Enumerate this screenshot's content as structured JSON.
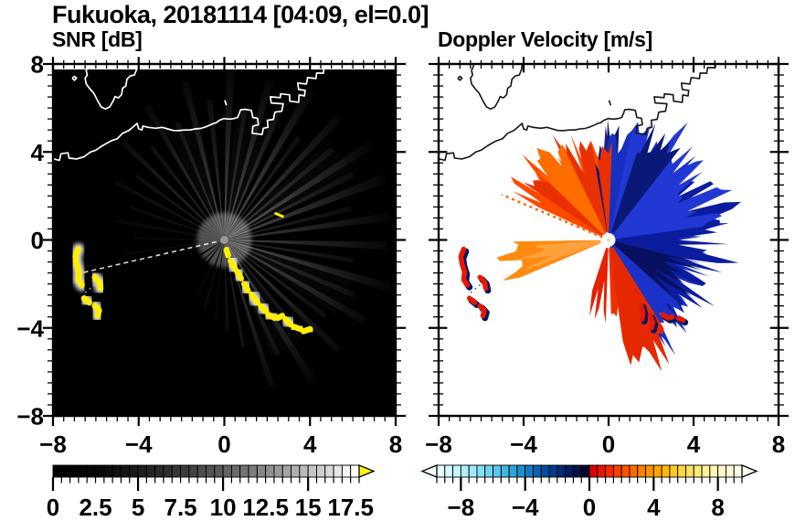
{
  "title": "Fukuoka, 20181114 [04:09, el=0.0]",
  "panels": [
    {
      "key": "snr",
      "title": "SNR [dB]"
    },
    {
      "key": "vel",
      "title": "Doppler Velocity [m/s]"
    }
  ],
  "axes": {
    "xlim": [
      -8,
      8
    ],
    "ylim": [
      -8,
      8
    ],
    "major_tick_values": [
      -8,
      -4,
      0,
      4,
      8
    ],
    "minor_step": 0.5,
    "xtick_labels": [
      "−8",
      "−4",
      "0",
      "4",
      "8"
    ],
    "ytick_labels": [
      "8",
      "4",
      "0",
      "−4",
      "−8"
    ]
  },
  "colors": {
    "snr_bg": "#000000",
    "vel_bg": "#ffffff",
    "coast_snr": "#ffffff",
    "coast_vel": "#141414",
    "high_snr_yellow": "#ffee00",
    "frame": "#000000",
    "doppler_red": "#e81800",
    "doppler_navy": "#0a1464"
  },
  "colorbars": [
    {
      "key": "snr",
      "min": 0,
      "max": 18,
      "labels": [
        "0",
        "2.5",
        "5",
        "7.5",
        "10",
        "12.5",
        "15",
        "17.5"
      ],
      "label_values": [
        0,
        2.5,
        5,
        7.5,
        10,
        12.5,
        15,
        17.5
      ],
      "major_tick_values": [
        0,
        5,
        10,
        15
      ],
      "over_arrow": "#ffff00",
      "under_arrow": null,
      "segments": [
        "#000000",
        "#010101",
        "#020202",
        "#040404",
        "#060606",
        "#090909",
        "#0d0d0d",
        "#111111",
        "#151515",
        "#191919",
        "#1e1e1e",
        "#242424",
        "#292929",
        "#2f2f2f",
        "#363636",
        "#3c3c3c",
        "#434343",
        "#4b4b4b",
        "#525252",
        "#5a5a5a",
        "#636363",
        "#6b6b6b",
        "#747474",
        "#7d7d7d",
        "#868686",
        "#909090",
        "#9a9a9a",
        "#a4a4a4",
        "#afafaf",
        "#b9b9b9",
        "#c4c4c4",
        "#cfcfcf",
        "#dbdbdb",
        "#e7e7e7",
        "#f3f3f3",
        "#ffffff"
      ]
    },
    {
      "key": "vel",
      "min": -9.5,
      "max": 9.5,
      "labels": [
        "−8",
        "−4",
        "0",
        "4",
        "8"
      ],
      "label_values": [
        -8,
        -4,
        0,
        4,
        8
      ],
      "major_tick_values": [
        -8,
        -4,
        0,
        4,
        8
      ],
      "over_arrow": "#fffcf0",
      "under_arrow": "#f0ffff",
      "segments": [
        "#e6ffff",
        "#d4fbfe",
        "#c2f6fc",
        "#b0f0fa",
        "#9ce9f8",
        "#86e0f5",
        "#70d5f0",
        "#5ac7ea",
        "#44b6e3",
        "#30a3da",
        "#1f8ed0",
        "#1278c2",
        "#0961b1",
        "#044c9e",
        "#023a8a",
        "#012a74",
        "#011c5e",
        "#001146",
        "#000830",
        "#dc0000",
        "#e91500",
        "#f42a00",
        "#fb3f00",
        "#ff5500",
        "#ff6a00",
        "#ff7f00",
        "#ff9300",
        "#ffa600",
        "#ffb80c",
        "#ffc824",
        "#ffd640",
        "#ffe25e",
        "#ffeb7c",
        "#fff198",
        "#fff6b2",
        "#fff9c8",
        "#fffcda",
        "#fffde8"
      ]
    }
  ],
  "chart_data": [
    {
      "type": "heatmap",
      "title": "SNR [dB]",
      "xlim": [
        -8,
        8
      ],
      "ylim": [
        -8,
        8
      ],
      "xticks": [
        -8,
        -4,
        0,
        4,
        8
      ],
      "yticks": [
        -8,
        -4,
        0,
        4,
        8
      ],
      "value_range": [
        0,
        18
      ],
      "units": "dB",
      "colormap": "black-to-white grayscale, yellow = above 18 dB",
      "radar_center": [
        0,
        0
      ],
      "features": "Bright radial SNR beams from radar at (0,0) toward N/NE/E/SE; dark shadow sectors toward SW; strong (yellow) echo chain from (0.3,-1.0) to (4.0,-4.1); yellow echo arcs near (-6.8,-0.5)..(-5.9,-3.4); white coastline with harbor structures along y=4..8"
    },
    {
      "type": "heatmap",
      "title": "Doppler Velocity [m/s]",
      "xlim": [
        -8,
        8
      ],
      "ylim": [
        -8,
        8
      ],
      "xticks": [
        -8,
        -4,
        0,
        4,
        8
      ],
      "yticks": [
        -8,
        -4,
        0,
        4,
        8
      ],
      "value_range": [
        -9.5,
        9.5
      ],
      "units": "m/s",
      "colormap": "diverging cyan-blue-navy (negative) / red-orange-cream (positive)",
      "radar_center": [
        0,
        0
      ],
      "features": "Negative (blue/navy) velocity fan east-northeast of radar; positive (red/orange) fan northwest; bright orange wedge due west; red streaks south; detached red/navy echoes near (-6.8,-1.2), (-5.9,-2) and along (1.5,-3)..(3.5,-3.7); black coastline"
    }
  ],
  "geometry": {
    "coastline": [
      [
        [
          -8.05,
          3.7
        ],
        [
          -7.7,
          3.62
        ],
        [
          -7.63,
          3.92
        ],
        [
          -7.3,
          3.96
        ],
        [
          -7.25,
          3.72
        ],
        [
          -6.9,
          3.68
        ],
        [
          -6.55,
          3.78
        ],
        [
          -6.25,
          4.0
        ],
        [
          -6.0,
          4.08
        ],
        [
          -5.7,
          4.28
        ],
        [
          -5.3,
          4.5
        ],
        [
          -5.0,
          4.6
        ],
        [
          -4.75,
          4.85
        ],
        [
          -4.45,
          4.98
        ],
        [
          -4.07,
          5.3
        ],
        [
          -4.0,
          5.05
        ],
        [
          -3.85,
          5.0
        ],
        [
          -3.8,
          5.18
        ],
        [
          -3.55,
          5.12
        ],
        [
          -3.2,
          5.08
        ],
        [
          -2.9,
          5.12
        ],
        [
          -2.65,
          5.05
        ],
        [
          -2.4,
          4.98
        ],
        [
          -2.15,
          4.97
        ],
        [
          -1.85,
          5.0
        ],
        [
          -1.6,
          5.0
        ],
        [
          -1.35,
          5.05
        ],
        [
          -1.1,
          5.07
        ],
        [
          -0.85,
          5.15
        ],
        [
          -0.66,
          5.23
        ],
        [
          -0.5,
          5.3
        ],
        [
          -0.37,
          5.33
        ],
        [
          -0.23,
          5.44
        ],
        [
          -0.02,
          5.52
        ],
        [
          0.15,
          5.5
        ],
        [
          0.33,
          5.5
        ],
        [
          0.5,
          5.53
        ],
        [
          0.62,
          5.57
        ],
        [
          0.7,
          5.75
        ],
        [
          0.76,
          5.92
        ],
        [
          0.97,
          5.94
        ],
        [
          1.15,
          5.91
        ],
        [
          1.26,
          5.89
        ],
        [
          1.33,
          5.57
        ],
        [
          1.45,
          5.55
        ],
        [
          1.55,
          5.53
        ],
        [
          1.59,
          5.24
        ],
        [
          1.42,
          5.2
        ],
        [
          1.33,
          5.16
        ],
        [
          1.3,
          4.85
        ],
        [
          1.55,
          4.82
        ],
        [
          1.76,
          4.79
        ],
        [
          1.82,
          5.08
        ],
        [
          2.04,
          5.12
        ],
        [
          2.01,
          5.44
        ],
        [
          2.29,
          5.48
        ],
        [
          2.36,
          5.81
        ],
        [
          2.68,
          5.85
        ],
        [
          2.75,
          6.19
        ],
        [
          2.45,
          6.21
        ],
        [
          2.19,
          6.23
        ],
        [
          2.15,
          6.51
        ],
        [
          2.61,
          6.47
        ],
        [
          2.63,
          6.64
        ],
        [
          3.04,
          6.6
        ],
        [
          3.06,
          6.31
        ],
        [
          3.47,
          6.26
        ],
        [
          3.49,
          6.59
        ],
        [
          3.74,
          6.55
        ],
        [
          3.77,
          6.8
        ],
        [
          3.47,
          6.84
        ],
        [
          3.43,
          7.13
        ],
        [
          3.83,
          7.09
        ],
        [
          3.89,
          7.38
        ],
        [
          4.28,
          7.34
        ],
        [
          4.31,
          7.59
        ],
        [
          4.62,
          7.58
        ],
        [
          4.66,
          7.84
        ],
        [
          5.02,
          7.83
        ],
        [
          5.06,
          8.3
        ]
      ],
      [
        [
          -6.34,
          8.3
        ],
        [
          -6.36,
          7.9
        ],
        [
          -6.45,
          7.7
        ],
        [
          -6.4,
          7.5
        ],
        [
          -6.5,
          7.35
        ],
        [
          -6.45,
          7.1
        ],
        [
          -6.3,
          6.9
        ],
        [
          -6.1,
          6.68
        ],
        [
          -5.9,
          6.3
        ],
        [
          -5.75,
          6.05
        ],
        [
          -5.55,
          5.95
        ],
        [
          -5.35,
          6.05
        ],
        [
          -5.2,
          6.3
        ],
        [
          -5.1,
          6.52
        ],
        [
          -4.95,
          6.46
        ],
        [
          -4.8,
          6.6
        ],
        [
          -4.75,
          6.9
        ],
        [
          -4.6,
          7.0
        ],
        [
          -4.55,
          7.3
        ],
        [
          -4.4,
          7.45
        ],
        [
          -4.2,
          7.5
        ],
        [
          -4.1,
          7.75
        ],
        [
          -4.02,
          8.3
        ]
      ],
      [
        [
          -7.1,
          7.35
        ],
        [
          -7.0,
          7.44
        ],
        [
          -6.9,
          7.36
        ],
        [
          -7.0,
          7.26
        ],
        [
          -7.1,
          7.35
        ]
      ],
      [
        [
          0.02,
          6.35
        ],
        [
          0.1,
          6.12
        ]
      ]
    ],
    "beams": [
      [
        8,
        0.92,
        1.4,
        0.34
      ],
      [
        14,
        0.72,
        1.1,
        0.22
      ],
      [
        21,
        0.95,
        1.6,
        0.42
      ],
      [
        27,
        0.8,
        1.2,
        0.26
      ],
      [
        33,
        0.97,
        1.5,
        0.45
      ],
      [
        40,
        0.78,
        1.2,
        0.3
      ],
      [
        47,
        0.92,
        1.4,
        0.4
      ],
      [
        54,
        0.7,
        1.1,
        0.24
      ],
      [
        60,
        0.95,
        1.5,
        0.44
      ],
      [
        67,
        0.8,
        1.2,
        0.3
      ],
      [
        74,
        0.92,
        1.3,
        0.38
      ],
      [
        81,
        0.72,
        1.1,
        0.26
      ],
      [
        88,
        0.95,
        1.4,
        0.4
      ],
      [
        96,
        0.78,
        1.2,
        0.28
      ],
      [
        104,
        0.9,
        1.3,
        0.34
      ],
      [
        112,
        0.7,
        1.1,
        0.24
      ],
      [
        120,
        0.85,
        1.2,
        0.3
      ],
      [
        128,
        0.65,
        1.0,
        0.22
      ],
      [
        136,
        0.78,
        1.1,
        0.26
      ],
      [
        144,
        0.6,
        1.0,
        0.18
      ],
      [
        152,
        0.68,
        1.0,
        0.15
      ],
      [
        161,
        0.55,
        0.9,
        0.12
      ],
      [
        170,
        0.6,
        0.9,
        0.1
      ],
      [
        179,
        0.5,
        0.8,
        0.08
      ],
      [
        188,
        0.55,
        0.8,
        0.07
      ],
      [
        -2,
        0.9,
        1.4,
        0.36
      ],
      [
        -9,
        0.72,
        1.1,
        0.24
      ],
      [
        -16,
        0.95,
        1.5,
        0.42
      ],
      [
        -23,
        0.78,
        1.2,
        0.28
      ],
      [
        -30,
        0.9,
        1.4,
        0.36
      ],
      [
        -37,
        0.7,
        1.1,
        0.24
      ],
      [
        -44,
        0.88,
        1.3,
        0.34
      ],
      [
        -51,
        0.68,
        1.1,
        0.22
      ],
      [
        -58,
        0.92,
        1.4,
        0.36
      ],
      [
        -65,
        0.7,
        1.1,
        0.24
      ],
      [
        -72,
        0.85,
        1.2,
        0.3
      ],
      [
        -80,
        0.6,
        1.0,
        0.2
      ],
      [
        -88,
        0.5,
        1.0,
        0.14
      ],
      [
        -97,
        0.45,
        0.9,
        0.11
      ],
      [
        -106,
        0.4,
        0.9,
        0.09
      ],
      [
        -116,
        0.35,
        0.8,
        0.07
      ],
      [
        35,
        0.8,
        9,
        0.08
      ],
      [
        75,
        0.75,
        10,
        0.07
      ],
      [
        110,
        0.7,
        8,
        0.06
      ],
      [
        -25,
        0.75,
        9,
        0.07
      ],
      [
        -60,
        0.7,
        8,
        0.06
      ]
    ],
    "shadow_wedges": [
      [
        212,
        1.0,
        2.2
      ],
      [
        224,
        0.9,
        1.4
      ],
      [
        233,
        0.95,
        2.0
      ],
      [
        250,
        0.85,
        1.7
      ],
      [
        262,
        0.55,
        1.2
      ]
    ],
    "bright_ray": {
      "angle": 193,
      "len": 0.82
    },
    "snr_chain": [
      [
        [
          0.1,
          -0.45
        ],
        [
          0.18,
          -0.7
        ]
      ],
      [
        [
          0.3,
          -0.95
        ],
        [
          0.5,
          -1.3
        ]
      ],
      [
        [
          0.6,
          -1.45
        ],
        [
          0.78,
          -1.75
        ]
      ],
      [
        [
          0.92,
          -2.0
        ],
        [
          1.1,
          -2.3
        ]
      ],
      [
        [
          1.28,
          -2.5
        ],
        [
          1.55,
          -2.85
        ]
      ],
      [
        [
          1.7,
          -3.0
        ],
        [
          1.95,
          -3.25
        ]
      ],
      [
        [
          2.05,
          -3.4
        ],
        [
          2.35,
          -3.55
        ]
      ],
      [
        [
          2.5,
          -3.55
        ],
        [
          2.7,
          -3.45
        ]
      ],
      [
        [
          2.85,
          -3.6
        ],
        [
          3.1,
          -3.85
        ]
      ],
      [
        [
          3.25,
          -3.95
        ],
        [
          3.55,
          -4.05
        ]
      ],
      [
        [
          3.7,
          -4.15
        ],
        [
          4.0,
          -4.05
        ]
      ]
    ],
    "ne_dash": [
      [
        2.4,
        1.2
      ],
      [
        2.72,
        1.07
      ]
    ],
    "west_arcs": [
      [
        [
          -6.82,
          -0.42
        ],
        [
          -6.95,
          -0.75
        ],
        [
          -6.9,
          -1.1
        ],
        [
          -6.78,
          -1.45
        ],
        [
          -6.82,
          -1.8
        ],
        [
          -6.65,
          -2.05
        ]
      ],
      [
        [
          -6.05,
          -1.7
        ],
        [
          -5.85,
          -1.9
        ],
        [
          -5.78,
          -2.2
        ]
      ],
      [
        [
          -6.55,
          -2.65
        ],
        [
          -6.3,
          -2.85
        ]
      ],
      [
        [
          -6.05,
          -3.0
        ],
        [
          -5.85,
          -3.2
        ],
        [
          -5.92,
          -3.45
        ]
      ]
    ],
    "west_arc_link": [
      [
        -6.5,
        -2.4
      ],
      [
        -5.95,
        -1.95
      ]
    ],
    "vel_lobes": [
      {
        "a0": 96,
        "a1": 155,
        "r0": 0.28,
        "r1": 0.6,
        "c": "#ff4a00",
        "seed": 11
      },
      {
        "a0": 100,
        "a1": 146,
        "r0": 0.36,
        "r1": 0.66,
        "c": "#e83000",
        "seed": 12
      },
      {
        "a0": 116,
        "a1": 136,
        "r0": 0.44,
        "r1": 0.7,
        "c": "#ff6c00",
        "seed": 13
      },
      {
        "a0": 79,
        "a1": 100,
        "r0": 0.32,
        "r1": 0.6,
        "c": "#0c1470",
        "seed": 14
      },
      {
        "a0": 86,
        "a1": 97,
        "r0": 0.46,
        "r1": 0.64,
        "c": "#1a2288",
        "seed": 15
      },
      {
        "a0": -80,
        "a1": 94,
        "r0": 0.3,
        "r1": 0.6,
        "c": "#1830c0",
        "seed": 16
      },
      {
        "a0": -62,
        "a1": 42,
        "r0": 0.36,
        "r1": 0.68,
        "c": "#0c1c9e",
        "seed": 17
      },
      {
        "a0": 8,
        "a1": 78,
        "r0": 0.4,
        "r1": 0.7,
        "c": "#2238d4",
        "seed": 18
      },
      {
        "a0": -48,
        "a1": -14,
        "r0": 0.28,
        "r1": 0.56,
        "c": "#071060",
        "seed": 19
      },
      {
        "a0": 52,
        "a1": 72,
        "r0": 0.48,
        "r1": 0.7,
        "c": "#0a1878",
        "seed": 20
      },
      {
        "a0": -78,
        "a1": -42,
        "r0": 0.42,
        "r1": 0.66,
        "c": "#1a32c8",
        "seed": 21
      },
      {
        "a0": 88,
        "a1": 98,
        "r0": 0.38,
        "r1": 0.52,
        "c": "#e83000",
        "seed": 27
      },
      {
        "a0": 181,
        "a1": 203,
        "r0": 0.48,
        "r1": 0.56,
        "c": "#ff8a10",
        "seed": 22
      },
      {
        "a0": 184,
        "a1": 200,
        "r0": 0.3,
        "r1": 0.46,
        "c": "#ffa23c",
        "seed": 23
      },
      {
        "a0": 252,
        "a1": 268,
        "r0": 0.2,
        "r1": 0.48,
        "c": "#e62000",
        "seed": 24
      },
      {
        "a0": 272,
        "a1": 288,
        "r0": 0.28,
        "r1": 0.5,
        "c": "#f03000",
        "seed": 25
      },
      {
        "a0": 278,
        "a1": 302,
        "r0": 0.42,
        "r1": 0.7,
        "c": "#e62800",
        "seed": 26
      }
    ],
    "vel_ray": {
      "angle": 157,
      "len": 0.64
    },
    "vel_bottom_blobs": [
      [
        [
          1.52,
          -2.95
        ],
        [
          1.62,
          -3.3
        ],
        [
          1.58,
          -3.6
        ]
      ],
      [
        [
          1.95,
          -3.45
        ],
        [
          2.08,
          -3.75
        ],
        [
          2.02,
          -4.0
        ]
      ],
      [
        [
          2.55,
          -3.4
        ],
        [
          2.8,
          -3.55
        ],
        [
          3.0,
          -3.5
        ]
      ],
      [
        [
          3.3,
          -3.55
        ],
        [
          3.5,
          -3.65
        ]
      ]
    ]
  }
}
